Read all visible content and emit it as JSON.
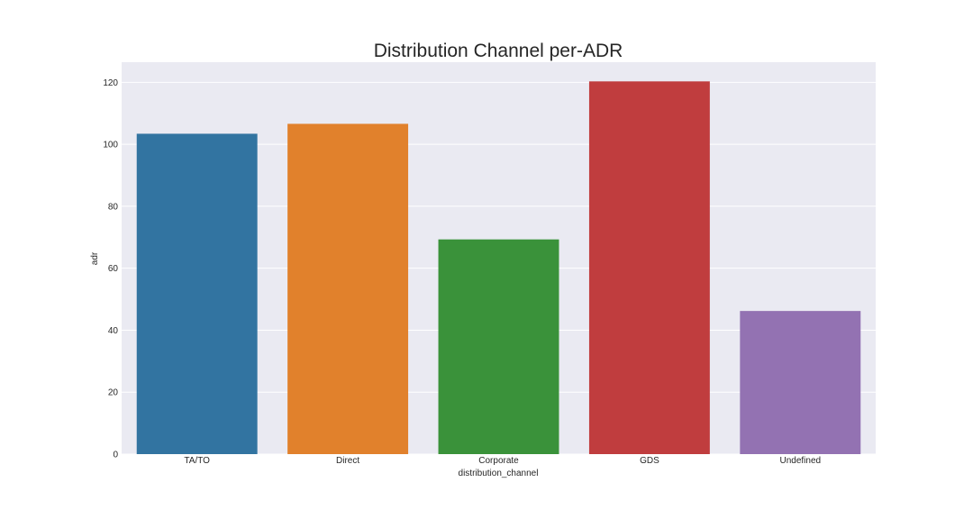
{
  "chart_data": {
    "type": "bar",
    "title": "Distribution Channel per-ADR",
    "xlabel": "distribution_channel",
    "ylabel": "adr",
    "categories": [
      "TA/TO",
      "Direct",
      "Corporate",
      "GDS",
      "Undefined"
    ],
    "values": [
      103.4,
      106.6,
      69.3,
      120.3,
      46.2
    ],
    "colors": [
      "#3274a1",
      "#e1812c",
      "#3a923a",
      "#c03d3e",
      "#9372b2"
    ],
    "ylim": [
      0,
      126.5
    ],
    "yticks": [
      0,
      20,
      40,
      60,
      80,
      100,
      120
    ],
    "grid": true,
    "background": "#eaeaf2",
    "legend": "none"
  }
}
